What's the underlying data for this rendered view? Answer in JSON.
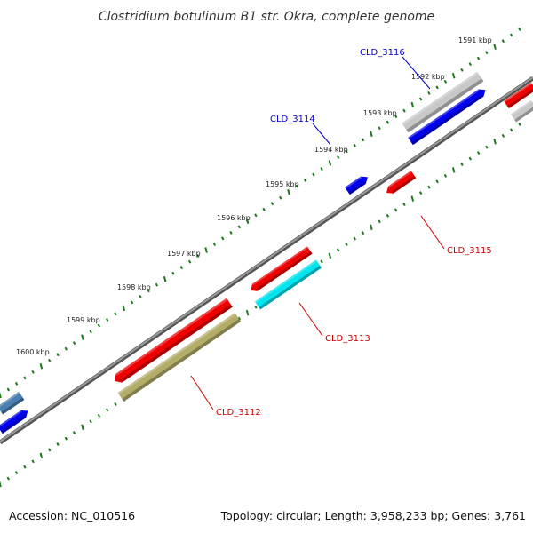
{
  "title": "Clostridium botulinum B1 str. Okra, complete genome",
  "ticks": [
    "1591 kbp",
    "1592 kbp",
    "1593 kbp",
    "1594 kbp",
    "1595 kbp",
    "1596 kbp",
    "1597 kbp",
    "1598 kbp",
    "1599 kbp",
    "1600 kbp"
  ],
  "genes": [
    {
      "id": "CLD_3116",
      "color": "#0000ee",
      "strand": "forward"
    },
    {
      "id": "CLD_3114",
      "color": "#0000ee",
      "strand": "forward"
    },
    {
      "id": "CLD_3115",
      "color": "#ee0000",
      "strand": "reverse"
    },
    {
      "id": "CLD_3113",
      "color": "#ee0000",
      "strand": "reverse"
    },
    {
      "id": "CLD_3112",
      "color": "#ee0000",
      "strand": "reverse"
    }
  ],
  "feature_colors": {
    "cds_forward": "#0000ee",
    "cds_reverse": "#ee0000",
    "gray_feature": "#c8c8c8",
    "cyan_feature": "#00e5ee",
    "olive_feature": "#b3ad6a",
    "steel_feature": "#4a7fb0",
    "backbone": "#777777",
    "tick_marks": "#1a7a1a"
  },
  "footer": {
    "accession": "Accession: NC_010516",
    "topology": "Topology: circular; Length: 3,958,233 bp; Genes: 3,761"
  }
}
